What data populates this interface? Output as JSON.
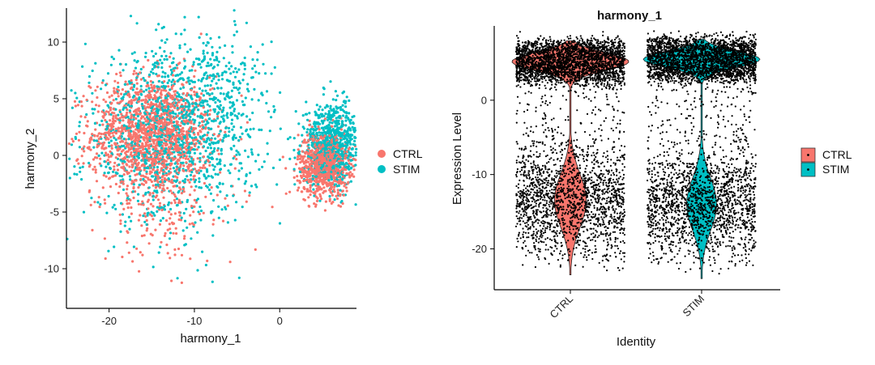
{
  "chart_data": [
    {
      "id": "umap",
      "type": "scatter",
      "title": "",
      "xlabel": "harmony_1",
      "ylabel": "harmony_2",
      "xlim": [
        -25,
        9
      ],
      "ylim": [
        -13.5,
        13
      ],
      "x_ticks": [
        -20,
        -10,
        0
      ],
      "y_ticks": [
        -10,
        -5,
        0,
        5,
        10
      ],
      "grid": false,
      "legend": {
        "position": "right",
        "entries": [
          "CTRL",
          "STIM"
        ]
      },
      "series": [
        {
          "name": "CTRL",
          "color": "#F8766D",
          "clusters": [
            {
              "center": [
                -15,
                1.8
              ],
              "spread": [
                3.5,
                2.6
              ],
              "count": 1500
            },
            {
              "center": [
                5.2,
                -0.8
              ],
              "spread": [
                1.5,
                1.4
              ],
              "count": 900
            },
            {
              "center": [
                -13,
                -5
              ],
              "spread": [
                4,
                2.5
              ],
              "count": 150
            }
          ]
        },
        {
          "name": "STIM",
          "color": "#00BFC4",
          "clusters": [
            {
              "center": [
                -13,
                1.5
              ],
              "spread": [
                5,
                3.6
              ],
              "count": 1200
            },
            {
              "center": [
                6.2,
                1.0
              ],
              "spread": [
                1.7,
                1.8
              ],
              "count": 800
            },
            {
              "center": [
                -8,
                6
              ],
              "spread": [
                3.5,
                2.8
              ],
              "count": 250
            }
          ]
        }
      ]
    },
    {
      "id": "violin",
      "type": "violin",
      "title": "harmony_1",
      "xlabel": "Identity",
      "ylabel": "Expression Level",
      "categories": [
        "CTRL",
        "STIM"
      ],
      "ylim": [
        -25.5,
        10
      ],
      "y_ticks": [
        -20,
        -10,
        0
      ],
      "grid": false,
      "legend": {
        "position": "right",
        "entries": [
          "CTRL",
          "STIM"
        ]
      },
      "series": [
        {
          "name": "CTRL",
          "color": "#F8766D",
          "modes": [
            {
              "mean": 5.2,
              "sd": 1.2,
              "weight": 0.55
            },
            {
              "mean": -13.5,
              "sd": 3.6,
              "weight": 0.45
            }
          ],
          "range": [
            -23.5,
            8
          ]
        },
        {
          "name": "STIM",
          "color": "#00BFC4",
          "modes": [
            {
              "mean": 5.5,
              "sd": 1.1,
              "weight": 0.55
            },
            {
              "mean": -14.0,
              "sd": 3.5,
              "weight": 0.45
            }
          ],
          "range": [
            -24,
            8.2
          ]
        }
      ],
      "point_color": "#000000"
    }
  ]
}
